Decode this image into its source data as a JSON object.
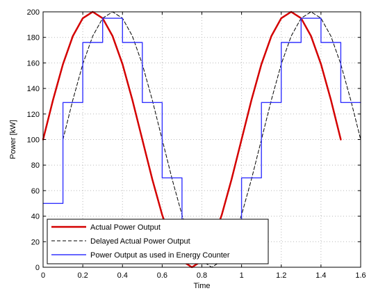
{
  "chart_data": {
    "type": "line",
    "title": "",
    "xlabel": "Time",
    "ylabel": "Power [kW]",
    "xlim": [
      0,
      1.6
    ],
    "ylim": [
      0,
      200
    ],
    "grid": true,
    "legend_position": "bottom-left",
    "x_ticks": [
      0,
      0.2,
      0.4,
      0.6,
      0.8,
      1,
      1.2,
      1.4,
      1.6
    ],
    "x_tick_labels": [
      "0",
      "0.2",
      "0.4",
      "0.6",
      "0.8",
      "1",
      "1.2",
      "1.4",
      "1.6"
    ],
    "y_ticks": [
      0,
      20,
      40,
      60,
      80,
      100,
      120,
      140,
      160,
      180,
      200
    ],
    "y_tick_labels": [
      "0",
      "20",
      "40",
      "60",
      "80",
      "100",
      "120",
      "140",
      "160",
      "180",
      "200"
    ],
    "series": [
      {
        "name": "Actual Power Output",
        "color": "#d40000",
        "style": "solid",
        "x": [
          0,
          0.05,
          0.1,
          0.15,
          0.2,
          0.25,
          0.3,
          0.35,
          0.4,
          0.45,
          0.5,
          0.55,
          0.6,
          0.65,
          0.7,
          0.75,
          0.8,
          0.85,
          0.9,
          0.95,
          1.0,
          1.05,
          1.1,
          1.15,
          1.2,
          1.25,
          1.3,
          1.35,
          1.4,
          1.45,
          1.5
        ],
        "y": [
          100,
          131,
          159,
          181,
          195,
          200,
          195,
          181,
          159,
          131,
          100,
          69,
          41,
          19,
          5,
          0,
          5,
          19,
          41,
          69,
          100,
          131,
          159,
          181,
          195,
          200,
          195,
          181,
          159,
          131,
          100
        ]
      },
      {
        "name": "Delayed Actual Power Output",
        "color": "#000000",
        "style": "dashed",
        "x": [
          0.1,
          0.15,
          0.2,
          0.25,
          0.3,
          0.35,
          0.4,
          0.45,
          0.5,
          0.55,
          0.6,
          0.65,
          0.7,
          0.75,
          0.8,
          0.85,
          0.9,
          0.95,
          1.0,
          1.05,
          1.1,
          1.15,
          1.2,
          1.25,
          1.3,
          1.35,
          1.4,
          1.45,
          1.5,
          1.55,
          1.6
        ],
        "y": [
          100,
          131,
          159,
          181,
          195,
          200,
          195,
          181,
          159,
          131,
          100,
          69,
          41,
          19,
          5,
          0,
          5,
          19,
          41,
          69,
          100,
          131,
          159,
          181,
          195,
          200,
          195,
          181,
          159,
          131,
          100
        ]
      },
      {
        "name": "Power Output as used in Energy Counter",
        "color": "#3333ff",
        "style": "step",
        "x": [
          0,
          0.1,
          0.1,
          0.2,
          0.2,
          0.3,
          0.3,
          0.4,
          0.4,
          0.5,
          0.5,
          0.6,
          0.6,
          0.7,
          0.7,
          0.8,
          0.8,
          0.9,
          0.9,
          1.0,
          1.0,
          1.1,
          1.1,
          1.2,
          1.2,
          1.3,
          1.3,
          1.4,
          1.4,
          1.5,
          1.5,
          1.6
        ],
        "y": [
          50,
          50,
          129,
          129,
          176,
          176,
          195,
          195,
          176,
          176,
          129,
          129,
          70,
          70,
          24,
          24,
          5,
          5,
          24,
          24,
          70,
          70,
          129,
          129,
          176,
          176,
          195,
          195,
          176,
          176,
          129,
          129
        ]
      }
    ]
  }
}
